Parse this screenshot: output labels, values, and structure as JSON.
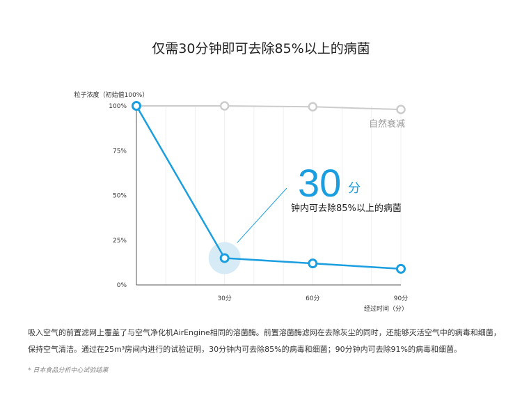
{
  "title": "仅需30分钟即可去除85%以上的病菌",
  "chart_data": {
    "type": "line",
    "ylabel": "粒子浓度（初始值100%）",
    "xlabel": "经过时间（分）",
    "y_ticks": [
      "0%",
      "25%",
      "50%",
      "75%",
      "100%"
    ],
    "y_tick_values": [
      0,
      25,
      50,
      75,
      100
    ],
    "x_ticks": [
      "30分",
      "60分",
      "90分"
    ],
    "x_tick_values": [
      30,
      60,
      90
    ],
    "xlim": [
      0,
      90
    ],
    "ylim": [
      0,
      100
    ],
    "grid": true,
    "series": [
      {
        "name": "自然衰减",
        "color": "#cccccc",
        "x": [
          0,
          30,
          60,
          90
        ],
        "y": [
          100,
          100,
          99.5,
          98
        ]
      },
      {
        "color": "#1a9ee0",
        "x": [
          0,
          30,
          60,
          90
        ],
        "y": [
          100,
          15,
          12,
          9
        ]
      }
    ],
    "callout": {
      "big_number": "30",
      "big_unit": "分",
      "text": "钟内可去除85%以上的病菌",
      "color": "#1a9ee0"
    }
  },
  "description": "吸入空气的前置滤网上覆盖了与空气净化机AirEngine相同的溶菌酶。前置溶菌酶滤网在去除灰尘的同时，还能够灭活空气中的病毒和细菌，保持空气清洁。通过在25m³房间内进行的试验证明，30分钟内可去除85%的病毒和细菌；90分钟内可去除91%的病毒和细菌。",
  "note": "* 日本食品分析中心试验结果"
}
